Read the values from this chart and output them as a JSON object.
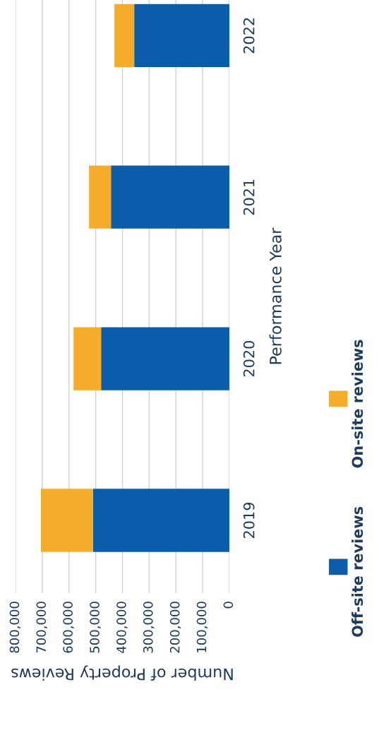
{
  "chart_data": {
    "type": "bar",
    "orientation": "horizontal",
    "stacked": true,
    "categories": [
      "2022",
      "2021",
      "2020",
      "2019"
    ],
    "series": [
      {
        "name": "Off-site reviews",
        "color": "#0b5cab",
        "values": [
          356000,
          443000,
          480000,
          510000
        ]
      },
      {
        "name": "On-site reviews",
        "color": "#f5ac2a",
        "values": [
          74000,
          82000,
          103000,
          195000
        ]
      }
    ],
    "xlim": [
      800000,
      0
    ],
    "xticks": [
      0,
      {
        "value": 100000,
        "label": "100,000"
      },
      {
        "value": 200000,
        "label": "200,000"
      },
      {
        "value": 300000,
        "label": "300,000"
      },
      {
        "value": 400000,
        "label": "400,000"
      },
      {
        "value": 500000,
        "label": "500,000"
      },
      {
        "value": 600000,
        "label": "600,000"
      },
      {
        "value": 700000,
        "label": "700,000"
      },
      {
        "value": 800000,
        "label": "800,000"
      }
    ],
    "xlabel": "Number of Property Reviews",
    "ylabel": "Performance Year",
    "grid": "x",
    "legend": "right"
  }
}
